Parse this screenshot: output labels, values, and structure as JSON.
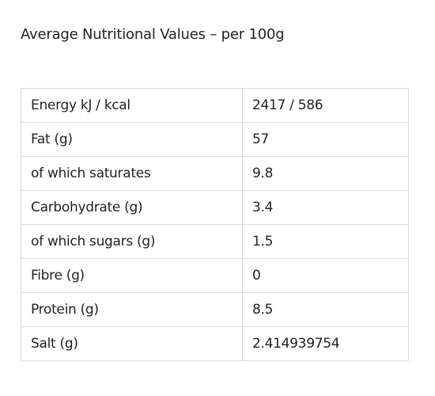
{
  "header": {
    "title": "Average Nutritional Values – per 100g"
  },
  "table": {
    "rows": [
      [
        "Energy kJ / kcal",
        "2417 / 586"
      ],
      [
        "Fat (g)",
        "57"
      ],
      [
        "of which saturates",
        "9.8"
      ],
      [
        "Carbohydrate (g)",
        "3.4"
      ],
      [
        "of which sugars (g)",
        "1.5"
      ],
      [
        "Fibre (g)",
        "0"
      ],
      [
        "Protein (g)",
        "8.5"
      ],
      [
        "Salt (g)",
        "2.414939754"
      ]
    ]
  }
}
